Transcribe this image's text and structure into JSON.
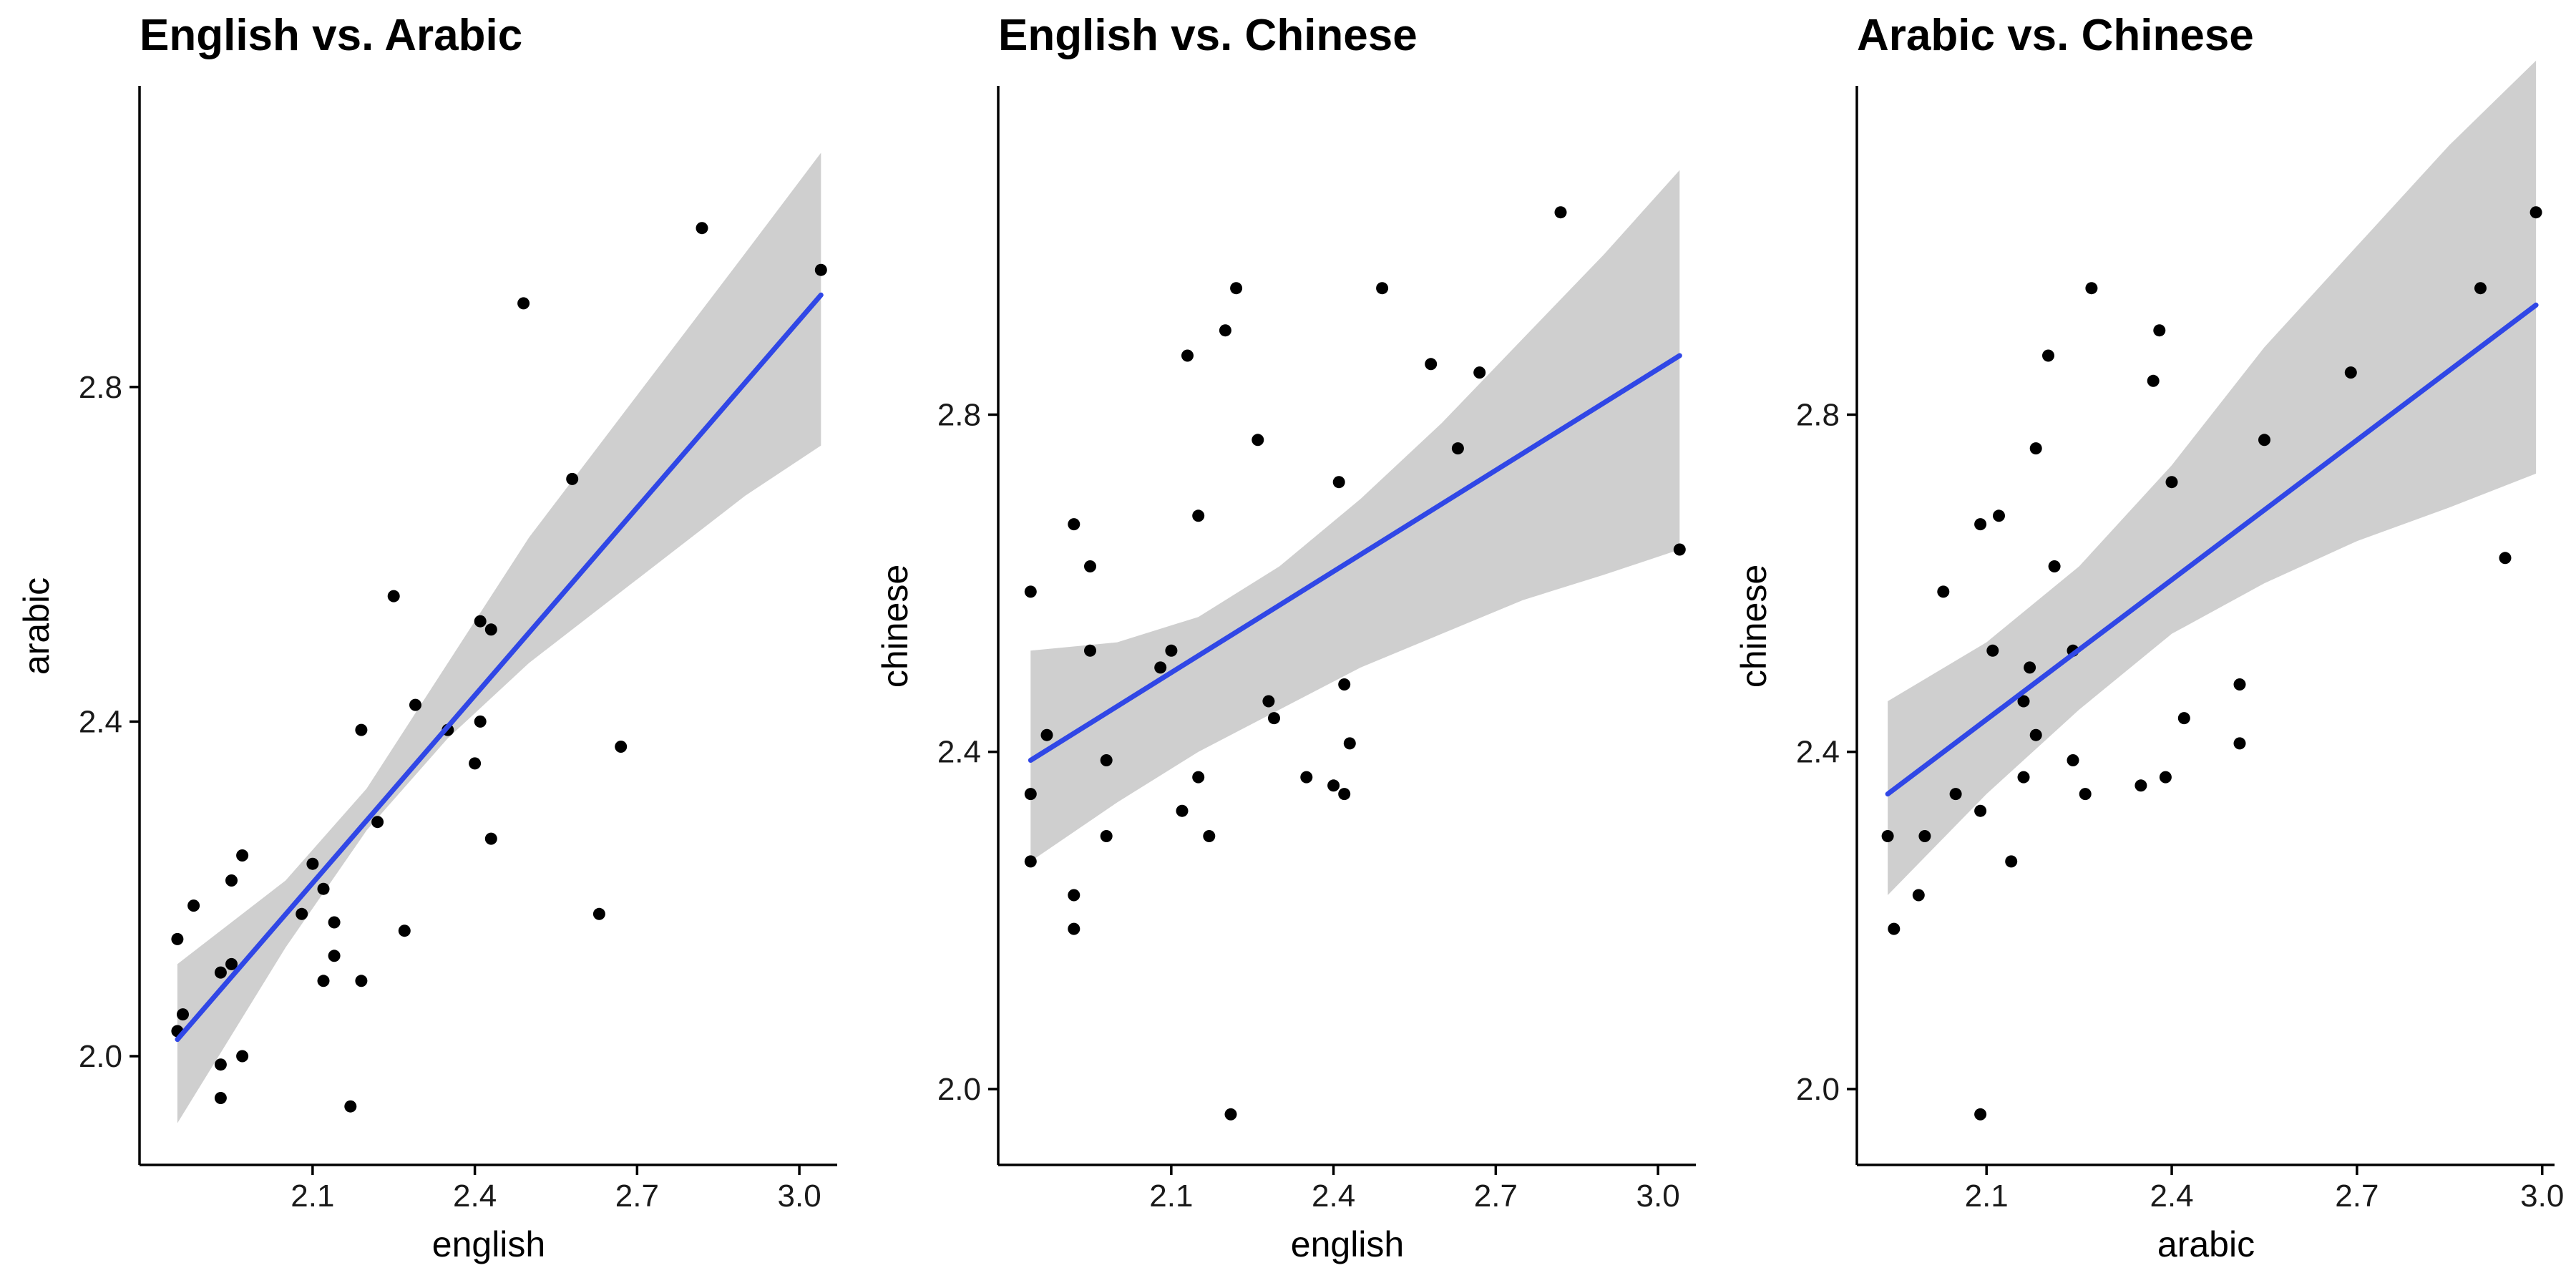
{
  "chart_data": [
    {
      "type": "scatter",
      "title": "English vs. Arabic",
      "xlabel": "english",
      "ylabel": "arabic",
      "xlim": [
        1.78,
        3.07
      ],
      "ylim": [
        1.87,
        3.16
      ],
      "xticks": [
        "2.1",
        "2.4",
        "2.7",
        "3.0"
      ],
      "yticks": [
        "2.0",
        "2.4",
        "2.8"
      ],
      "points": [
        [
          1.85,
          2.14
        ],
        [
          1.88,
          2.18
        ],
        [
          1.85,
          2.03
        ],
        [
          1.86,
          2.05
        ],
        [
          1.93,
          2.1
        ],
        [
          1.95,
          2.11
        ],
        [
          1.95,
          2.21
        ],
        [
          1.97,
          2.24
        ],
        [
          1.93,
          1.99
        ],
        [
          1.93,
          1.95
        ],
        [
          1.97,
          2.0
        ],
        [
          2.08,
          2.17
        ],
        [
          2.1,
          2.23
        ],
        [
          2.12,
          2.2
        ],
        [
          2.14,
          2.16
        ],
        [
          2.14,
          2.12
        ],
        [
          2.12,
          2.09
        ],
        [
          2.17,
          1.94
        ],
        [
          2.19,
          2.09
        ],
        [
          2.19,
          2.39
        ],
        [
          2.22,
          2.28
        ],
        [
          2.25,
          2.55
        ],
        [
          2.27,
          2.15
        ],
        [
          2.29,
          2.42
        ],
        [
          2.35,
          2.39
        ],
        [
          2.4,
          2.35
        ],
        [
          2.41,
          2.4
        ],
        [
          2.41,
          2.52
        ],
        [
          2.43,
          2.51
        ],
        [
          2.43,
          2.26
        ],
        [
          2.49,
          2.9
        ],
        [
          2.58,
          2.69
        ],
        [
          2.63,
          2.17
        ],
        [
          2.67,
          2.37
        ],
        [
          2.82,
          2.99
        ],
        [
          3.04,
          2.94
        ]
      ],
      "fit": {
        "x": [
          1.85,
          3.04
        ],
        "y": [
          2.02,
          2.91
        ]
      },
      "band": {
        "x": [
          1.85,
          2.05,
          2.2,
          2.35,
          2.5,
          2.7,
          2.9,
          3.04
        ],
        "lower": [
          1.92,
          2.13,
          2.27,
          2.38,
          2.47,
          2.57,
          2.67,
          2.73
        ],
        "upper": [
          2.11,
          2.21,
          2.32,
          2.47,
          2.62,
          2.79,
          2.96,
          3.08
        ]
      },
      "grid": false,
      "legend": "none"
    },
    {
      "type": "scatter",
      "title": "English vs. Chinese",
      "xlabel": "english",
      "ylabel": "chinese",
      "xlim": [
        1.78,
        3.07
      ],
      "ylim": [
        1.91,
        3.19
      ],
      "xticks": [
        "2.1",
        "2.4",
        "2.7",
        "3.0"
      ],
      "yticks": [
        "2.0",
        "2.4",
        "2.8"
      ],
      "points": [
        [
          1.84,
          2.59
        ],
        [
          1.84,
          2.27
        ],
        [
          1.84,
          2.35
        ],
        [
          1.87,
          2.42
        ],
        [
          1.92,
          2.67
        ],
        [
          1.92,
          2.23
        ],
        [
          1.92,
          2.19
        ],
        [
          1.95,
          2.62
        ],
        [
          1.95,
          2.52
        ],
        [
          1.98,
          2.39
        ],
        [
          1.98,
          2.3
        ],
        [
          2.08,
          2.5
        ],
        [
          2.1,
          2.52
        ],
        [
          2.13,
          2.87
        ],
        [
          2.12,
          2.33
        ],
        [
          2.15,
          2.68
        ],
        [
          2.15,
          2.37
        ],
        [
          2.17,
          2.3
        ],
        [
          2.2,
          2.9
        ],
        [
          2.21,
          1.97
        ],
        [
          2.22,
          2.95
        ],
        [
          2.26,
          2.77
        ],
        [
          2.28,
          2.46
        ],
        [
          2.29,
          2.44
        ],
        [
          2.35,
          2.37
        ],
        [
          2.4,
          2.36
        ],
        [
          2.41,
          2.72
        ],
        [
          2.42,
          2.48
        ],
        [
          2.42,
          2.35
        ],
        [
          2.43,
          2.41
        ],
        [
          2.49,
          2.95
        ],
        [
          2.58,
          2.86
        ],
        [
          2.63,
          2.76
        ],
        [
          2.67,
          2.85
        ],
        [
          2.82,
          3.04
        ],
        [
          3.04,
          2.64
        ]
      ],
      "fit": {
        "x": [
          1.84,
          3.04
        ],
        "y": [
          2.39,
          2.87
        ]
      },
      "band": {
        "x": [
          1.84,
          2.0,
          2.15,
          2.3,
          2.45,
          2.6,
          2.75,
          2.9,
          3.04
        ],
        "lower": [
          2.27,
          2.34,
          2.4,
          2.45,
          2.5,
          2.54,
          2.58,
          2.61,
          2.64
        ],
        "upper": [
          2.52,
          2.53,
          2.56,
          2.62,
          2.7,
          2.79,
          2.89,
          2.99,
          3.09
        ]
      },
      "grid": false,
      "legend": "none"
    },
    {
      "type": "scatter",
      "title": "Arabic vs. Chinese",
      "xlabel": "arabic",
      "ylabel": "chinese",
      "xlim": [
        1.89,
        3.02
      ],
      "ylim": [
        1.91,
        3.19
      ],
      "xticks": [
        "2.1",
        "2.4",
        "2.7",
        "3.0"
      ],
      "yticks": [
        "2.0",
        "2.4",
        "2.8"
      ],
      "points": [
        [
          1.94,
          2.3
        ],
        [
          1.95,
          2.19
        ],
        [
          1.99,
          2.23
        ],
        [
          2.0,
          2.3
        ],
        [
          2.03,
          2.59
        ],
        [
          2.05,
          2.35
        ],
        [
          2.09,
          2.67
        ],
        [
          2.09,
          2.33
        ],
        [
          2.09,
          1.97
        ],
        [
          2.11,
          2.52
        ],
        [
          2.12,
          2.68
        ],
        [
          2.14,
          2.27
        ],
        [
          2.16,
          2.46
        ],
        [
          2.16,
          2.37
        ],
        [
          2.17,
          2.5
        ],
        [
          2.18,
          2.76
        ],
        [
          2.18,
          2.42
        ],
        [
          2.2,
          2.87
        ],
        [
          2.21,
          2.62
        ],
        [
          2.24,
          2.52
        ],
        [
          2.24,
          2.39
        ],
        [
          2.26,
          2.35
        ],
        [
          2.27,
          2.95
        ],
        [
          2.35,
          2.36
        ],
        [
          2.37,
          2.84
        ],
        [
          2.38,
          2.9
        ],
        [
          2.39,
          2.37
        ],
        [
          2.4,
          2.72
        ],
        [
          2.42,
          2.44
        ],
        [
          2.51,
          2.48
        ],
        [
          2.51,
          2.41
        ],
        [
          2.55,
          2.77
        ],
        [
          2.69,
          2.85
        ],
        [
          2.9,
          2.95
        ],
        [
          2.94,
          2.63
        ],
        [
          2.99,
          3.04
        ]
      ],
      "fit": {
        "x": [
          1.94,
          2.99
        ],
        "y": [
          2.35,
          2.93
        ]
      },
      "band": {
        "x": [
          1.94,
          2.1,
          2.25,
          2.4,
          2.55,
          2.7,
          2.85,
          2.99
        ],
        "lower": [
          2.23,
          2.35,
          2.45,
          2.54,
          2.6,
          2.65,
          2.69,
          2.73
        ],
        "upper": [
          2.46,
          2.53,
          2.62,
          2.74,
          2.88,
          3.0,
          3.12,
          3.22
        ]
      },
      "grid": false,
      "legend": "none"
    }
  ],
  "colors": {
    "point": "#000000",
    "fit_line": "#3047e6",
    "band": "#cccccc",
    "axis": "#000000",
    "background": "#ffffff"
  }
}
